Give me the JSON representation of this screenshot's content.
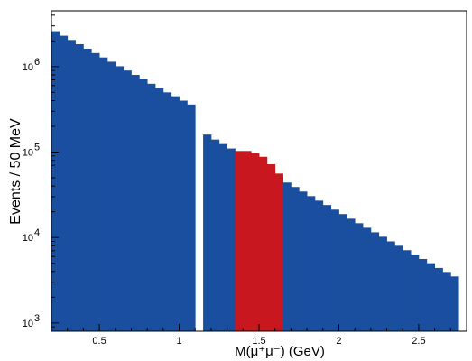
{
  "chart_data": {
    "type": "bar",
    "title": "",
    "xlabel": "M(μ⁺μ⁻) (GeV)",
    "ylabel": "Events / 50 MeV",
    "xlim": [
      0.2,
      2.8
    ],
    "ylim": [
      800,
      4500000
    ],
    "yscale": "log",
    "bin_width": 0.05,
    "x_ticks": [
      "0.5",
      "1",
      "1.5",
      "2",
      "2.5"
    ],
    "x_tick_values": [
      0.5,
      1,
      1.5,
      2,
      2.5
    ],
    "y_ticks": [
      {
        "base": "10",
        "exp": "3",
        "value": 1000
      },
      {
        "base": "10",
        "exp": "4",
        "value": 10000
      },
      {
        "base": "10",
        "exp": "5",
        "value": 100000
      },
      {
        "base": "10",
        "exp": "6",
        "value": 1000000
      }
    ],
    "colors": {
      "blue": "#1a4fa0",
      "red": "#c8171e"
    },
    "series": [
      {
        "name": "",
        "color": "#1a4fa0",
        "x_start": 0.2,
        "values": [
          2600000,
          2300000,
          2050000,
          1830000,
          1620000,
          1440000,
          1280000,
          1140000,
          1010000,
          900000,
          800000,
          710000,
          630000,
          560000,
          500000,
          450000,
          400000,
          360000
        ]
      },
      {
        "name": "",
        "color": "#1a4fa0",
        "x_start": 1.15,
        "values": [
          160000,
          140000,
          124000,
          110000,
          97000,
          85000,
          75000,
          66000,
          58000,
          51000,
          44000,
          39000,
          34500,
          30500,
          27000,
          24000,
          21200,
          18800,
          16600,
          14700,
          13000,
          11500,
          10200,
          9000,
          8000,
          7100,
          6300,
          5600,
          5000,
          4400,
          3950,
          3500
        ]
      },
      {
        "name": "",
        "color": "#c8171e",
        "x_start": 1.35,
        "values": [
          103000,
          103000,
          97000,
          88000,
          72000,
          56000
        ]
      }
    ]
  }
}
